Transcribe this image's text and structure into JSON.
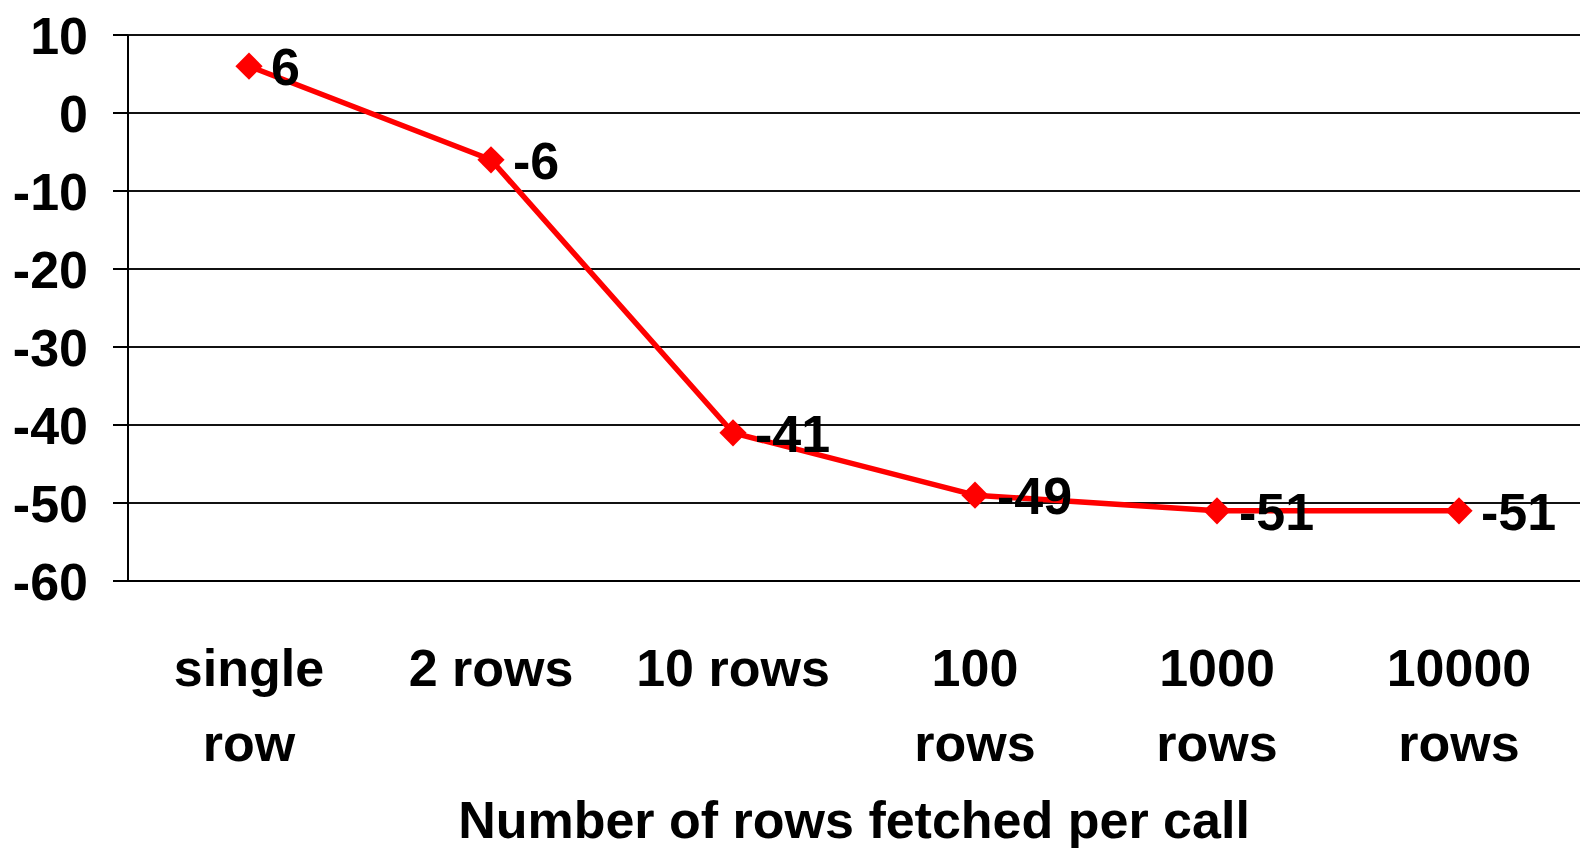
{
  "chart_data": {
    "type": "line",
    "xlabel": "Number of rows fetched per call",
    "categories": [
      "single row",
      "2 rows",
      "10 rows",
      "100 rows",
      "1000 rows",
      "10000 rows"
    ],
    "values": [
      6,
      -6,
      -41,
      -49,
      -51,
      -51
    ],
    "color": "#ff0000",
    "marker": "diamond",
    "line_style": "solid",
    "ylim": [
      -60,
      10
    ],
    "yticks": [
      -60,
      -50,
      -40,
      -30,
      -20,
      -10,
      0,
      10
    ],
    "grid": "y",
    "data_labels": true
  }
}
